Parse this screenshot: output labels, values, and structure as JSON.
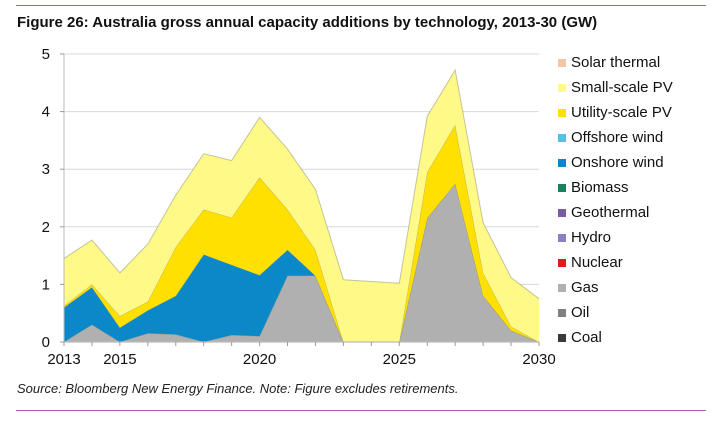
{
  "figure": {
    "title": "Figure 26: Australia gross annual capacity additions by technology, 2013-30 (GW)",
    "source": "Source: Bloomberg New Energy Finance. Note: Figure excludes retirements."
  },
  "chart_data": {
    "type": "area",
    "stacked": true,
    "title": "Figure 26: Australia gross annual capacity additions by technology, 2013-30 (GW)",
    "xlabel": "",
    "ylabel": "GW",
    "ylim": [
      0,
      5
    ],
    "yticks": [
      "0",
      "1",
      "2",
      "3",
      "4",
      "5"
    ],
    "xticks": [
      "2013",
      "2015",
      "2020",
      "2025",
      "2030"
    ],
    "x": [
      2013,
      2014,
      2015,
      2016,
      2017,
      2018,
      2019,
      2020,
      2021,
      2022,
      2023,
      2024,
      2025,
      2026,
      2027,
      2028,
      2029,
      2030
    ],
    "grid": true,
    "legend_position": "right",
    "legend": [
      "Solar thermal",
      "Small-scale PV",
      "Utility-scale PV",
      "Offshore wind",
      "Onshore wind",
      "Biomass",
      "Geothermal",
      "Hydro",
      "Nuclear",
      "Gas",
      "Oil",
      "Coal"
    ],
    "series": [
      {
        "name": "Coal",
        "color": "#3a3a3a",
        "values": [
          0,
          0,
          0,
          0,
          0,
          0,
          0,
          0,
          0,
          0,
          0,
          0,
          0,
          0,
          0,
          0,
          0,
          0
        ]
      },
      {
        "name": "Oil",
        "color": "#808080",
        "values": [
          0,
          0,
          0,
          0,
          0,
          0,
          0,
          0,
          0,
          0,
          0,
          0,
          0,
          0,
          0,
          0,
          0,
          0
        ]
      },
      {
        "name": "Gas",
        "color": "#b0b0b0",
        "values": [
          0,
          0.3,
          0,
          0.15,
          0.13,
          0,
          0.12,
          0.1,
          1.15,
          1.15,
          0,
          0,
          0,
          2.15,
          2.75,
          0.8,
          0.2,
          0
        ]
      },
      {
        "name": "Nuclear",
        "color": "#d81e1e",
        "values": [
          0,
          0,
          0,
          0,
          0,
          0,
          0,
          0,
          0,
          0,
          0,
          0,
          0,
          0,
          0,
          0,
          0,
          0
        ]
      },
      {
        "name": "Hydro",
        "color": "#8a7fc0",
        "values": [
          0,
          0,
          0,
          0,
          0,
          0,
          0,
          0,
          0,
          0,
          0,
          0,
          0,
          0,
          0,
          0,
          0,
          0
        ]
      },
      {
        "name": "Geothermal",
        "color": "#7b5aa6",
        "values": [
          0,
          0,
          0,
          0,
          0,
          0,
          0,
          0,
          0,
          0,
          0,
          0,
          0,
          0,
          0,
          0,
          0,
          0
        ]
      },
      {
        "name": "Biomass",
        "color": "#1e7f5c",
        "values": [
          0,
          0,
          0,
          0,
          0,
          0,
          0,
          0,
          0,
          0,
          0,
          0,
          0,
          0,
          0,
          0,
          0,
          0
        ]
      },
      {
        "name": "Onshore wind",
        "color": "#0a88c8",
        "values": [
          0.6,
          0.65,
          0.25,
          0.4,
          0.67,
          1.52,
          1.22,
          1.06,
          0.45,
          0,
          0,
          0,
          0,
          0,
          0,
          0,
          0,
          0
        ]
      },
      {
        "name": "Offshore wind",
        "color": "#5bbde8",
        "values": [
          0,
          0,
          0,
          0,
          0,
          0,
          0,
          0,
          0,
          0,
          0,
          0,
          0,
          0,
          0,
          0,
          0,
          0
        ]
      },
      {
        "name": "Utility-scale PV",
        "color": "#ffe000",
        "values": [
          0.03,
          0.05,
          0.2,
          0.15,
          0.85,
          0.78,
          0.82,
          1.7,
          0.7,
          0.45,
          0,
          0,
          0,
          0.8,
          1.02,
          0.4,
          0.07,
          0
        ]
      },
      {
        "name": "Small-scale PV",
        "color": "#fff987",
        "values": [
          0.82,
          0.77,
          0.75,
          1.0,
          0.9,
          0.97,
          0.99,
          1.04,
          1.05,
          1.05,
          1.08,
          1.05,
          1.02,
          0.97,
          0.95,
          0.87,
          0.85,
          0.75
        ]
      },
      {
        "name": "Solar thermal",
        "color": "#f2c6a8",
        "values": [
          0,
          0,
          0,
          0,
          0,
          0,
          0,
          0,
          0,
          0,
          0,
          0,
          0,
          0,
          0,
          0,
          0,
          0
        ]
      }
    ]
  }
}
